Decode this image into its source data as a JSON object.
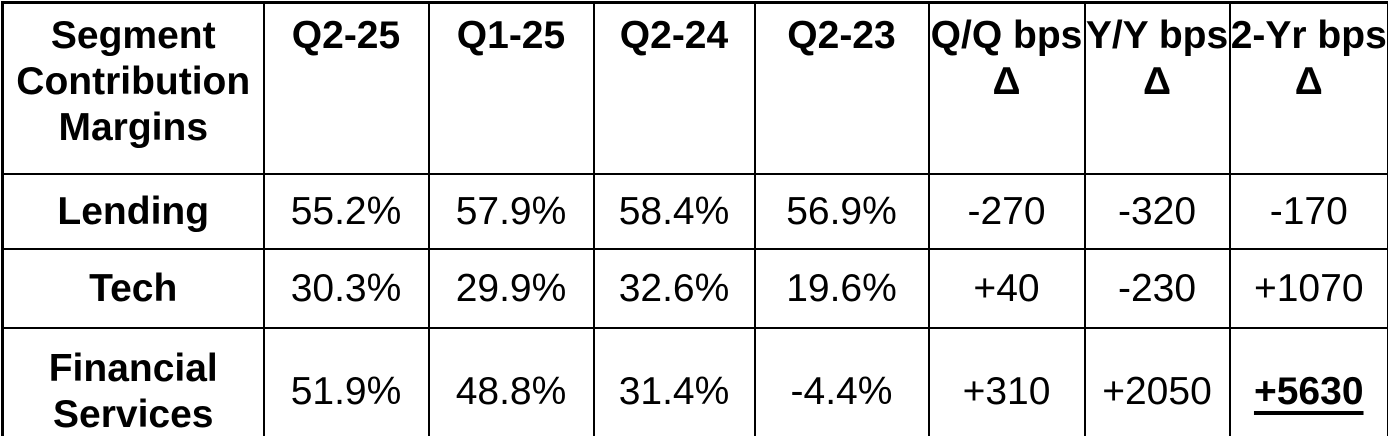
{
  "colors": {
    "text": "#000000",
    "border": "#000000",
    "background": "#ffffff"
  },
  "chart_data": {
    "type": "table",
    "title": "Segment Contribution Margins",
    "columns": [
      "Segment Contribution Margins",
      "Q2-25",
      "Q1-25",
      "Q2-24",
      "Q2-23",
      "Q/Q bps Δ",
      "Y/Y bps Δ",
      "2-Yr bps Δ"
    ],
    "rows": [
      {
        "label": "Lending",
        "values": [
          "55.2%",
          "57.9%",
          "58.4%",
          "56.9%",
          "-270",
          "-320",
          "-170"
        ]
      },
      {
        "label": "Tech",
        "values": [
          "30.3%",
          "29.9%",
          "32.6%",
          "19.6%",
          "+40",
          "-230",
          "+1070"
        ]
      },
      {
        "label": "Financial Services",
        "values": [
          "51.9%",
          "48.8%",
          "31.4%",
          "-4.4%",
          "+310",
          "+2050",
          "+5630"
        ],
        "emphasized_value": "+5630",
        "emphasis": "bold underline on 2-Yr bps Δ value"
      }
    ]
  }
}
